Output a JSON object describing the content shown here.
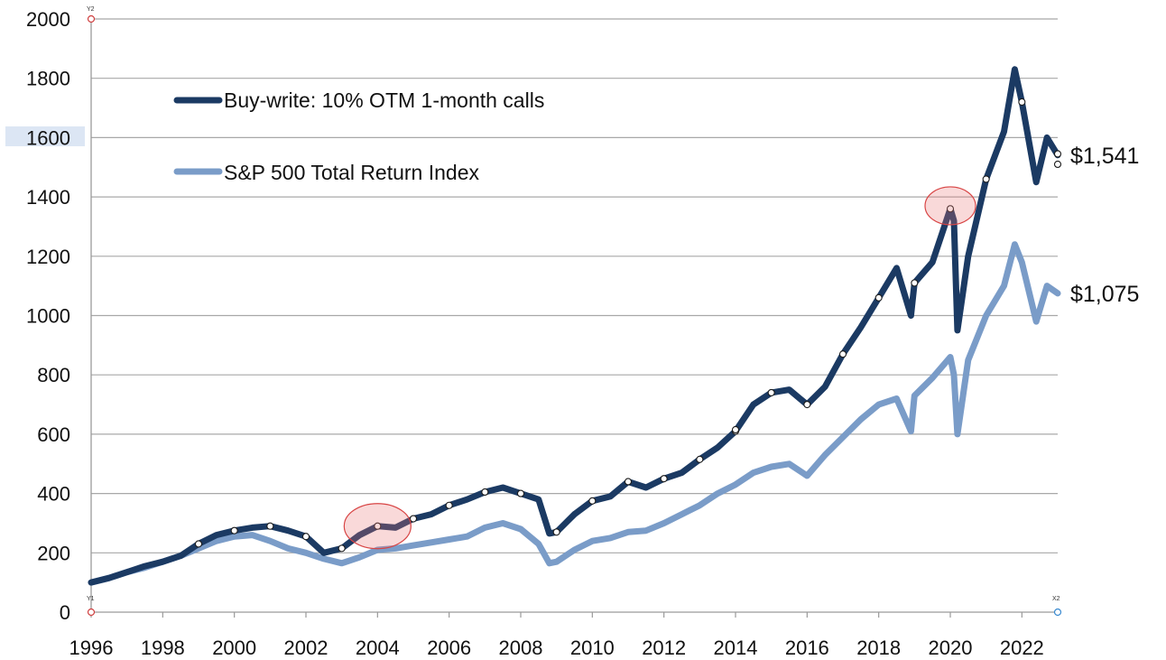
{
  "chart_data": {
    "type": "line",
    "title": "",
    "xlabel": "",
    "ylabel": "",
    "xlim": [
      1996,
      2023
    ],
    "ylim": [
      0,
      2000
    ],
    "y_ticks": [
      0,
      200,
      400,
      600,
      800,
      1000,
      1200,
      1400,
      1600,
      1800,
      2000
    ],
    "x_ticks": [
      1996,
      1998,
      2000,
      2002,
      2004,
      2006,
      2008,
      2010,
      2012,
      2014,
      2016,
      2018,
      2020,
      2022
    ],
    "grid": true,
    "legend_position": "top-left",
    "series": [
      {
        "name": "Buy-write: 10% OTM 1-month calls",
        "color": "#1b3a63",
        "end_label": "$1,541",
        "x": [
          1996,
          1996.5,
          1997,
          1997.5,
          1998,
          1998.5,
          1999,
          1999.5,
          2000,
          2000.5,
          2001,
          2001.5,
          2002,
          2002.5,
          2003,
          2003.5,
          2004,
          2004.5,
          2005,
          2005.5,
          2006,
          2006.5,
          2007,
          2007.5,
          2008,
          2008.5,
          2008.8,
          2009,
          2009.5,
          2010,
          2010.5,
          2011,
          2011.5,
          2012,
          2012.5,
          2013,
          2013.5,
          2014,
          2014.5,
          2015,
          2015.5,
          2016,
          2016.5,
          2017,
          2017.5,
          2018,
          2018.5,
          2018.9,
          2019,
          2019.5,
          2020,
          2020.1,
          2020.2,
          2020.5,
          2021,
          2021.5,
          2021.8,
          2022,
          2022.4,
          2022.7,
          2023
        ],
        "values": [
          100,
          115,
          135,
          155,
          170,
          190,
          230,
          260,
          275,
          285,
          290,
          275,
          255,
          200,
          215,
          260,
          290,
          285,
          315,
          330,
          360,
          380,
          405,
          420,
          400,
          380,
          265,
          270,
          330,
          375,
          390,
          440,
          420,
          450,
          470,
          515,
          555,
          610,
          700,
          740,
          750,
          700,
          760,
          870,
          960,
          1060,
          1160,
          1000,
          1110,
          1180,
          1360,
          1320,
          950,
          1200,
          1460,
          1620,
          1830,
          1720,
          1450,
          1600,
          1541
        ]
      },
      {
        "name": "S&P 500 Total Return Index",
        "color": "#7a9cc8",
        "end_label": "$1,075",
        "x": [
          1996,
          1996.5,
          1997,
          1997.5,
          1998,
          1998.5,
          1999,
          1999.5,
          2000,
          2000.5,
          2001,
          2001.5,
          2002,
          2002.5,
          2003,
          2003.5,
          2004,
          2004.5,
          2005,
          2005.5,
          2006,
          2006.5,
          2007,
          2007.5,
          2008,
          2008.5,
          2008.8,
          2009,
          2009.5,
          2010,
          2010.5,
          2011,
          2011.5,
          2012,
          2012.5,
          2013,
          2013.5,
          2014,
          2014.5,
          2015,
          2015.5,
          2016,
          2016.5,
          2017,
          2017.5,
          2018,
          2018.5,
          2018.9,
          2019,
          2019.5,
          2020,
          2020.1,
          2020.2,
          2020.5,
          2021,
          2021.5,
          2021.8,
          2022,
          2022.4,
          2022.7,
          2023
        ],
        "values": [
          100,
          115,
          135,
          150,
          170,
          190,
          215,
          240,
          255,
          260,
          240,
          215,
          200,
          180,
          165,
          185,
          210,
          215,
          225,
          235,
          245,
          255,
          285,
          300,
          280,
          230,
          165,
          170,
          210,
          240,
          250,
          270,
          275,
          300,
          330,
          360,
          400,
          430,
          470,
          490,
          500,
          460,
          530,
          590,
          650,
          700,
          720,
          610,
          730,
          790,
          860,
          800,
          600,
          850,
          1000,
          1100,
          1240,
          1180,
          980,
          1100,
          1075
        ]
      }
    ],
    "annotations": [
      {
        "type": "highlight-ellipse",
        "x": 2004,
        "y": 290
      },
      {
        "type": "highlight-ellipse",
        "x": 2020,
        "y": 1370
      }
    ],
    "corner_markers": [
      "Y2",
      "Y1",
      "X2"
    ]
  }
}
